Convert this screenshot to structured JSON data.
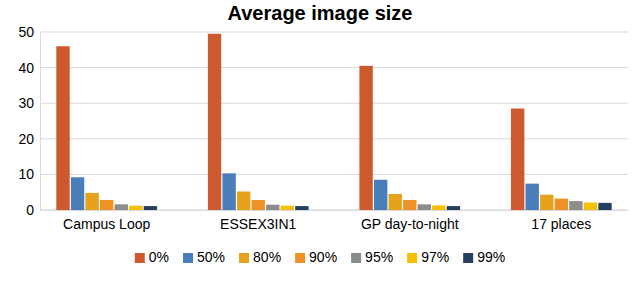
{
  "chart_data": {
    "type": "bar",
    "title": "Average image size",
    "categories": [
      "Campus Loop",
      "ESSEX3IN1",
      "GP day-to-night",
      "17 places"
    ],
    "series": [
      {
        "name": "0%",
        "color": "#cc5a2e",
        "values": [
          46,
          49.5,
          40.5,
          28.5
        ]
      },
      {
        "name": "50%",
        "color": "#4a7ebb",
        "values": [
          9.2,
          10.3,
          8.5,
          7.4
        ]
      },
      {
        "name": "80%",
        "color": "#e6a21a",
        "values": [
          4.8,
          5.2,
          4.5,
          4.3
        ]
      },
      {
        "name": "90%",
        "color": "#ee9226",
        "values": [
          2.8,
          2.8,
          2.8,
          3.2
        ]
      },
      {
        "name": "95%",
        "color": "#8c8c8c",
        "values": [
          1.6,
          1.5,
          1.6,
          2.5
        ]
      },
      {
        "name": "97%",
        "color": "#f5c000",
        "values": [
          1.2,
          1.2,
          1.3,
          2.1
        ]
      },
      {
        "name": "99%",
        "color": "#243f60",
        "values": [
          1.1,
          1.1,
          1.1,
          2.0
        ]
      }
    ],
    "ylim": [
      0,
      50
    ],
    "yticks": [
      0,
      10,
      20,
      30,
      40,
      50
    ],
    "grid": true,
    "legend": "bottom"
  }
}
